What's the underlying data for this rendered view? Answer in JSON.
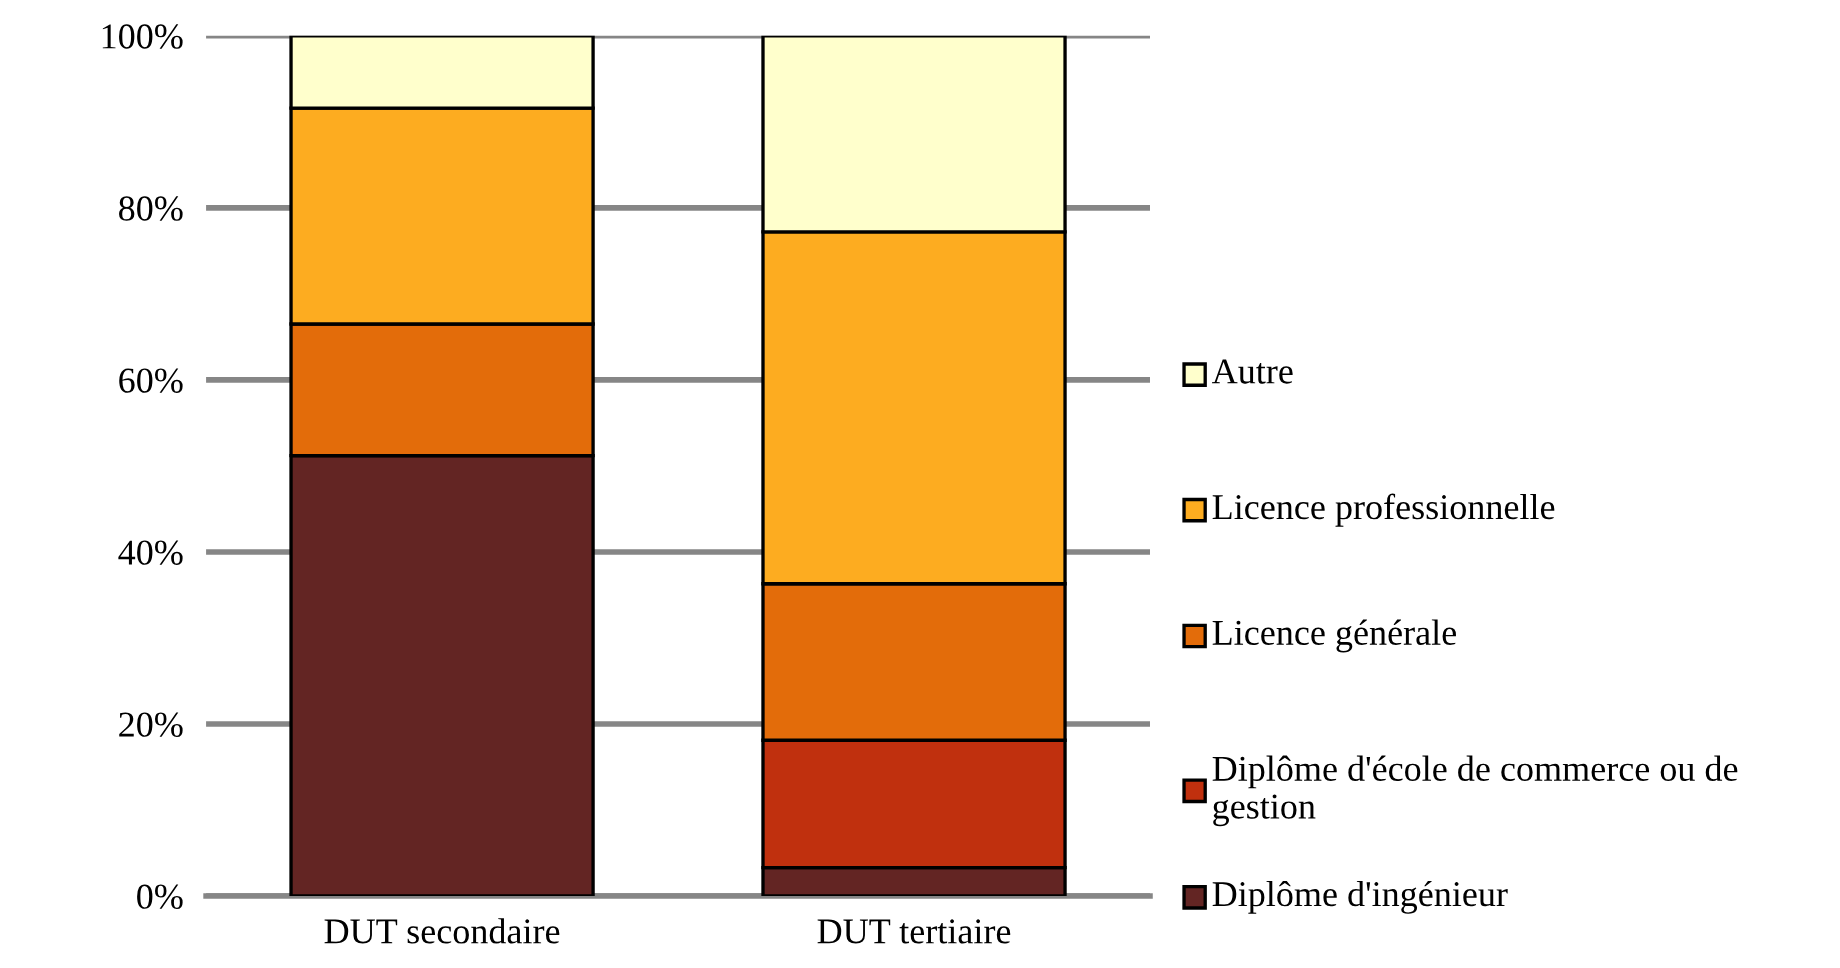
{
  "chart_data": {
    "type": "bar",
    "stacked": true,
    "categories": [
      "DUT secondaire",
      "DUT tertiaire"
    ],
    "series": [
      {
        "name": "Diplôme d'ingénieur",
        "color": "#632523",
        "values": [
          51.2,
          3.3
        ]
      },
      {
        "name": "Diplôme d'école de commerce ou de gestion",
        "color": "#c0300e",
        "values": [
          0,
          14.8
        ]
      },
      {
        "name": "Licence générale",
        "color": "#e36c0a",
        "values": [
          15.3,
          18.2
        ]
      },
      {
        "name": "Licence professionnelle",
        "color": "#fdac20",
        "values": [
          25.1,
          40.9
        ]
      },
      {
        "name": "Autre",
        "color": "#ffffcc",
        "values": [
          8.4,
          22.8
        ]
      }
    ],
    "ylim": [
      0,
      100
    ],
    "yticks": [
      {
        "value": 0,
        "label": "0%"
      },
      {
        "value": 20,
        "label": "20%"
      },
      {
        "value": 40,
        "label": "40%"
      },
      {
        "value": 60,
        "label": "60%"
      },
      {
        "value": 80,
        "label": "80%"
      },
      {
        "value": 100,
        "label": "100%"
      }
    ],
    "grid": "y",
    "legend": "right"
  }
}
